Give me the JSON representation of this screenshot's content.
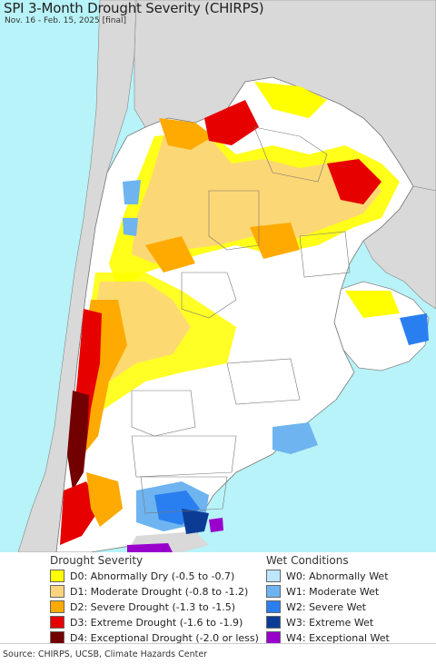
{
  "title": "SPI 3-Month Drought Severity (CHIRPS)",
  "subtitle": "Nov. 16 - Feb. 15, 2025 [final]",
  "colors": {
    "ocean": "#b7f3f8",
    "land_outside": "#d9d9d9",
    "no_drought": "#ffffff",
    "border": "#888888",
    "D0": "#ffff00",
    "D1": "#fcd37f",
    "D2": "#ffaa00",
    "D3": "#e60000",
    "D4": "#730000",
    "W0": "#bde6fb",
    "W1": "#6eb4f0",
    "W2": "#2a7ff0",
    "W3": "#0a3c96",
    "W4": "#9900cc"
  },
  "legend": {
    "drought_heading": "Drought Severity",
    "wet_heading": "Wet Conditions",
    "drought_items": [
      {
        "code": "D0",
        "label": "D0: Abnormally Dry (-0.5 to -0.7)",
        "color": "#ffff00"
      },
      {
        "code": "D1",
        "label": "D1: Moderate Drought (-0.8 to -1.2)",
        "color": "#fcd37f"
      },
      {
        "code": "D2",
        "label": "D2: Severe Drought (-1.3 to -1.5)",
        "color": "#ffaa00"
      },
      {
        "code": "D3",
        "label": "D3: Extreme Drought (-1.6 to -1.9)",
        "color": "#e60000"
      },
      {
        "code": "D4",
        "label": "D4: Exceptional Drought (-2.0 or less)",
        "color": "#730000"
      }
    ],
    "wet_items": [
      {
        "code": "W0",
        "label": "W0: Abnormally Wet",
        "color": "#bde6fb"
      },
      {
        "code": "W1",
        "label": "W1: Moderate Wet",
        "color": "#6eb4f0"
      },
      {
        "code": "W2",
        "label": "W2: Severe Wet",
        "color": "#2a7ff0"
      },
      {
        "code": "W3",
        "label": "W3: Extreme Wet",
        "color": "#0a3c96"
      },
      {
        "code": "W4",
        "label": "W4: Exceptional Wet",
        "color": "#9900cc"
      }
    ]
  },
  "source": "Source: CHIRPS, UCSB, Climate Hazards Center"
}
